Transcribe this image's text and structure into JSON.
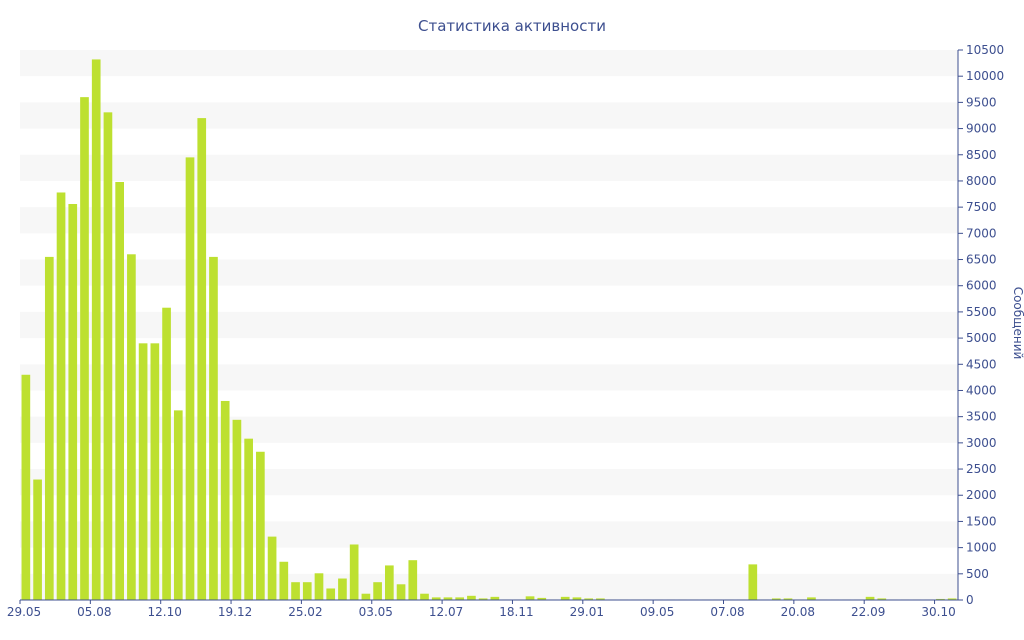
{
  "chart_data": {
    "type": "bar",
    "title": "Статистика активности",
    "xlabel": "",
    "ylabel": "Сообщений",
    "ylim": [
      0,
      10500
    ],
    "yticks": [
      0,
      500,
      1000,
      1500,
      2000,
      2500,
      3000,
      3500,
      4000,
      4500,
      5000,
      5500,
      6000,
      6500,
      7000,
      7500,
      8000,
      8500,
      9000,
      9500,
      10000,
      10500
    ],
    "y_axis_side": "right",
    "grid": "horizontal bands",
    "legend": "none",
    "x_tick_labels": [
      {
        "label": "29.05",
        "index": 0
      },
      {
        "label": "05.08",
        "index": 6
      },
      {
        "label": "12.10",
        "index": 12
      },
      {
        "label": "19.12",
        "index": 18
      },
      {
        "label": "25.02",
        "index": 24
      },
      {
        "label": "03.05",
        "index": 30
      },
      {
        "label": "12.07",
        "index": 36
      },
      {
        "label": "18.11",
        "index": 42
      },
      {
        "label": "29.01",
        "index": 48
      },
      {
        "label": "09.05",
        "index": 54
      },
      {
        "label": "07.08",
        "index": 60
      },
      {
        "label": "20.08",
        "index": 66
      },
      {
        "label": "22.09",
        "index": 72
      },
      {
        "label": "30.10",
        "index": 78
      }
    ],
    "series": [
      {
        "values": [
          4300,
          2300,
          6550,
          7780,
          7560,
          9600,
          10320,
          9310,
          7980,
          6600,
          4900,
          4900,
          5580,
          3620,
          8450,
          9200,
          6550,
          3800,
          3440,
          3080,
          2830,
          1210,
          730,
          340,
          340,
          510,
          220,
          410,
          1060,
          120,
          340,
          660,
          300,
          760,
          120,
          50,
          50,
          50,
          80,
          30,
          60,
          10,
          10,
          70,
          40,
          10,
          60,
          50,
          30,
          30,
          10,
          10,
          10,
          10,
          10,
          10,
          10,
          10,
          10,
          10,
          10,
          10,
          680,
          10,
          30,
          30,
          10,
          50,
          10,
          10,
          10,
          10,
          60,
          30,
          10,
          10,
          10,
          10,
          20,
          30
        ]
      }
    ],
    "colors": {
      "bar": "#bde030",
      "band": "#f7f7f7",
      "text": "#3d4f8f",
      "axis": "#3d4f8f"
    }
  }
}
